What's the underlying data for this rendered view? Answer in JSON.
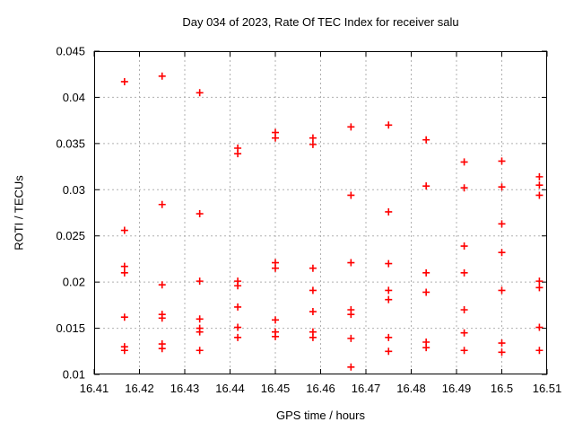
{
  "chart_data": {
    "type": "scatter",
    "title": "Day 034 of 2023, Rate Of TEC Index for receiver salu",
    "xlabel": "GPS time / hours",
    "ylabel": "ROTI / TECUs",
    "xlim": [
      16.41,
      16.51
    ],
    "ylim": [
      0.01,
      0.045
    ],
    "x_ticks": [
      {
        "v": 16.41,
        "label": "16.41"
      },
      {
        "v": 16.42,
        "label": "16.42"
      },
      {
        "v": 16.43,
        "label": "16.43"
      },
      {
        "v": 16.44,
        "label": "16.44"
      },
      {
        "v": 16.45,
        "label": "16.45"
      },
      {
        "v": 16.46,
        "label": "16.46"
      },
      {
        "v": 16.47,
        "label": "16.47"
      },
      {
        "v": 16.48,
        "label": "16.48"
      },
      {
        "v": 16.49,
        "label": "16.49"
      },
      {
        "v": 16.5,
        "label": "16.5"
      },
      {
        "v": 16.51,
        "label": "16.51"
      }
    ],
    "y_ticks": [
      {
        "v": 0.01,
        "label": "0.01"
      },
      {
        "v": 0.015,
        "label": "0.015"
      },
      {
        "v": 0.02,
        "label": "0.02"
      },
      {
        "v": 0.025,
        "label": "0.025"
      },
      {
        "v": 0.03,
        "label": "0.03"
      },
      {
        "v": 0.035,
        "label": "0.035"
      },
      {
        "v": 0.04,
        "label": "0.04"
      },
      {
        "v": 0.045,
        "label": "0.045"
      }
    ],
    "grid": true,
    "legend": "none",
    "marker": "plus-cross",
    "marker_color": "#ff0000",
    "grid_color": "#b0b0b0",
    "axis_color": "#000000",
    "series": [
      {
        "name": "ROTI",
        "points": [
          [
            16.4167,
            0.0417
          ],
          [
            16.4167,
            0.0256
          ],
          [
            16.4167,
            0.0217
          ],
          [
            16.4167,
            0.021
          ],
          [
            16.4167,
            0.0162
          ],
          [
            16.4167,
            0.013
          ],
          [
            16.4167,
            0.0126
          ],
          [
            16.425,
            0.0423
          ],
          [
            16.425,
            0.0284
          ],
          [
            16.425,
            0.0197
          ],
          [
            16.425,
            0.0165
          ],
          [
            16.425,
            0.0161
          ],
          [
            16.425,
            0.0133
          ],
          [
            16.425,
            0.0128
          ],
          [
            16.4333,
            0.0405
          ],
          [
            16.4333,
            0.0274
          ],
          [
            16.4333,
            0.0201
          ],
          [
            16.4333,
            0.016
          ],
          [
            16.4333,
            0.015
          ],
          [
            16.4333,
            0.0146
          ],
          [
            16.4333,
            0.0126
          ],
          [
            16.4417,
            0.0345
          ],
          [
            16.4417,
            0.0339
          ],
          [
            16.4417,
            0.0201
          ],
          [
            16.4417,
            0.0196
          ],
          [
            16.4417,
            0.0173
          ],
          [
            16.4417,
            0.0151
          ],
          [
            16.4417,
            0.014
          ],
          [
            16.45,
            0.0362
          ],
          [
            16.45,
            0.0356
          ],
          [
            16.45,
            0.0221
          ],
          [
            16.45,
            0.0215
          ],
          [
            16.45,
            0.0159
          ],
          [
            16.45,
            0.0146
          ],
          [
            16.45,
            0.0141
          ],
          [
            16.4583,
            0.0356
          ],
          [
            16.4583,
            0.0349
          ],
          [
            16.4583,
            0.0215
          ],
          [
            16.4583,
            0.0191
          ],
          [
            16.4583,
            0.0168
          ],
          [
            16.4583,
            0.0146
          ],
          [
            16.4583,
            0.014
          ],
          [
            16.4667,
            0.0368
          ],
          [
            16.4667,
            0.0294
          ],
          [
            16.4667,
            0.0221
          ],
          [
            16.4667,
            0.017
          ],
          [
            16.4667,
            0.0165
          ],
          [
            16.4667,
            0.0139
          ],
          [
            16.4667,
            0.0108
          ],
          [
            16.475,
            0.037
          ],
          [
            16.475,
            0.0276
          ],
          [
            16.475,
            0.022
          ],
          [
            16.475,
            0.0191
          ],
          [
            16.475,
            0.0181
          ],
          [
            16.475,
            0.014
          ],
          [
            16.475,
            0.0125
          ],
          [
            16.4833,
            0.0354
          ],
          [
            16.4833,
            0.0304
          ],
          [
            16.4833,
            0.021
          ],
          [
            16.4833,
            0.0189
          ],
          [
            16.4833,
            0.0135
          ],
          [
            16.4833,
            0.0129
          ],
          [
            16.4917,
            0.033
          ],
          [
            16.4917,
            0.0302
          ],
          [
            16.4917,
            0.0239
          ],
          [
            16.4917,
            0.021
          ],
          [
            16.4917,
            0.017
          ],
          [
            16.4917,
            0.0145
          ],
          [
            16.4917,
            0.0126
          ],
          [
            16.5,
            0.0331
          ],
          [
            16.5,
            0.0303
          ],
          [
            16.5,
            0.0263
          ],
          [
            16.5,
            0.0232
          ],
          [
            16.5,
            0.0191
          ],
          [
            16.5,
            0.0134
          ],
          [
            16.5,
            0.0124
          ],
          [
            16.5083,
            0.0314
          ],
          [
            16.5083,
            0.0305
          ],
          [
            16.5083,
            0.0294
          ],
          [
            16.5083,
            0.0201
          ],
          [
            16.5083,
            0.0194
          ],
          [
            16.5083,
            0.0151
          ],
          [
            16.5083,
            0.0126
          ]
        ]
      }
    ]
  }
}
